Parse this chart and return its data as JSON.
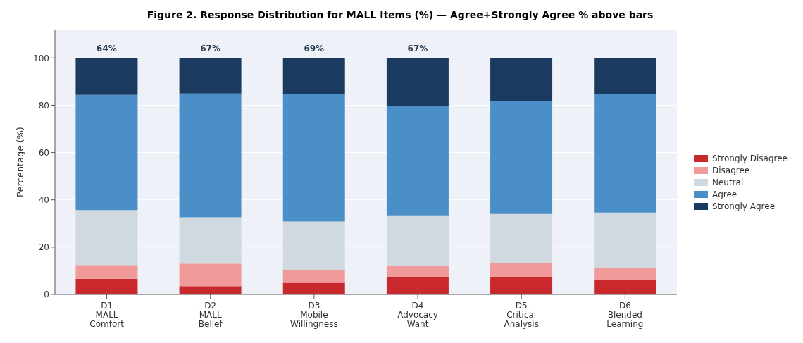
{
  "chart_data": {
    "type": "bar",
    "stacked": true,
    "title": "Figure 2. Response Distribution for MALL Items (%) — Agree+Strongly Agree % above bars",
    "ylabel": "Percentage (%)",
    "categories": [
      "D1\nMALL\nComfort",
      "D2\nMALL\nBelief",
      "D3\nMobile\nWillingness",
      "D4\nAdvocacy\nWant",
      "D5\nCritical\nAnalysis",
      "D6\nBlended\nLearning"
    ],
    "series": [
      {
        "name": "Strongly Disagree",
        "color": "#c9282d",
        "values": [
          6.6,
          3.5,
          4.9,
          7.2,
          7.2,
          6.1
        ]
      },
      {
        "name": "Disagree",
        "color": "#f09a9a",
        "values": [
          5.8,
          9.5,
          5.5,
          4.9,
          6.1,
          4.9
        ]
      },
      {
        "name": "Neutral",
        "color": "#d1d9e0",
        "values": [
          23.3,
          19.6,
          20.4,
          21.3,
          20.7,
          23.6
        ]
      },
      {
        "name": "Agree",
        "color": "#4a8fc7",
        "values": [
          48.7,
          52.4,
          53.9,
          46.1,
          47.6,
          50.1
        ]
      },
      {
        "name": "Strongly Agree",
        "color": "#1a3a5f",
        "values": [
          15.6,
          15.0,
          15.3,
          20.5,
          18.4,
          15.3
        ]
      }
    ],
    "annotations": [
      {
        "text": "64%",
        "x": "D1\nMALL\nComfort",
        "y": 100
      },
      {
        "text": "67%",
        "x": "D2\nMALL\nBelief",
        "y": 100
      },
      {
        "text": "69%",
        "x": "D3\nMobile\nWillingness",
        "y": 100
      },
      {
        "text": "67%",
        "x": "D4\nAdvocacy\nWant",
        "y": 100
      }
    ],
    "ylim": [
      0,
      112
    ],
    "yticks": [
      0,
      20,
      40,
      60,
      80,
      100
    ],
    "grid": "y",
    "legend": "right"
  }
}
